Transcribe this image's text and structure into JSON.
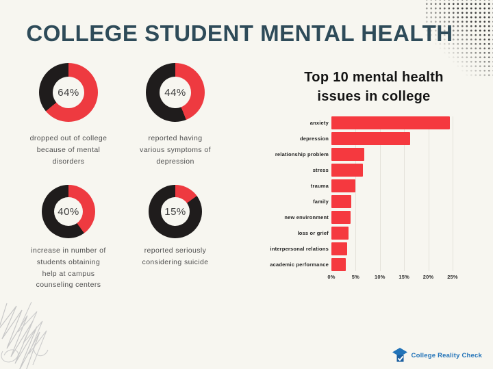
{
  "title": "COLLEGE STUDENT MENTAL HEALTH",
  "colors": {
    "background": "#f7f6f0",
    "title_text": "#2e4b59",
    "accent_red": "#ee3a40",
    "donut_dark": "#1f1c1c",
    "caption_text": "#4f4f4f",
    "logo_blue": "#2273b8"
  },
  "stats": [
    {
      "value": 64,
      "percent_label": "64%",
      "caption": "dropped out of college\nbecause of mental\ndisorders"
    },
    {
      "value": 44,
      "percent_label": "44%",
      "caption": "reported having\nvarious symptoms of\ndepression"
    },
    {
      "value": 40,
      "percent_label": "40%",
      "caption": "increase in number of\nstudents obtaining\nhelp at campus\ncounseling centers"
    },
    {
      "value": 15,
      "percent_label": "15%",
      "caption": "reported seriously\nconsidering suicide"
    }
  ],
  "chart_data": {
    "type": "bar",
    "orientation": "horizontal",
    "title": "Top 10 mental health\nissues in college",
    "categories": [
      "anxiety",
      "depression",
      "relationship problem",
      "stress",
      "trauma",
      "family",
      "new environment",
      "loss or grief",
      "interpersonal relations",
      "academic performance"
    ],
    "values": [
      24.5,
      16.3,
      6.8,
      6.5,
      5.0,
      4.1,
      3.9,
      3.5,
      3.2,
      3.0
    ],
    "xlabel": "",
    "ylabel": "",
    "xlim": [
      0,
      25
    ],
    "x_tick_labels": [
      "0%",
      "5%",
      "10%",
      "15%",
      "20%",
      "25%"
    ],
    "grid": true,
    "legend": false,
    "bar_color": "#f5393f"
  },
  "icons": {
    "logo": "graduation-cap-icon",
    "corner": "halftone-dots-pattern",
    "doodle": "pencil-scribble"
  },
  "footer": {
    "brand": "College Reality Check"
  }
}
